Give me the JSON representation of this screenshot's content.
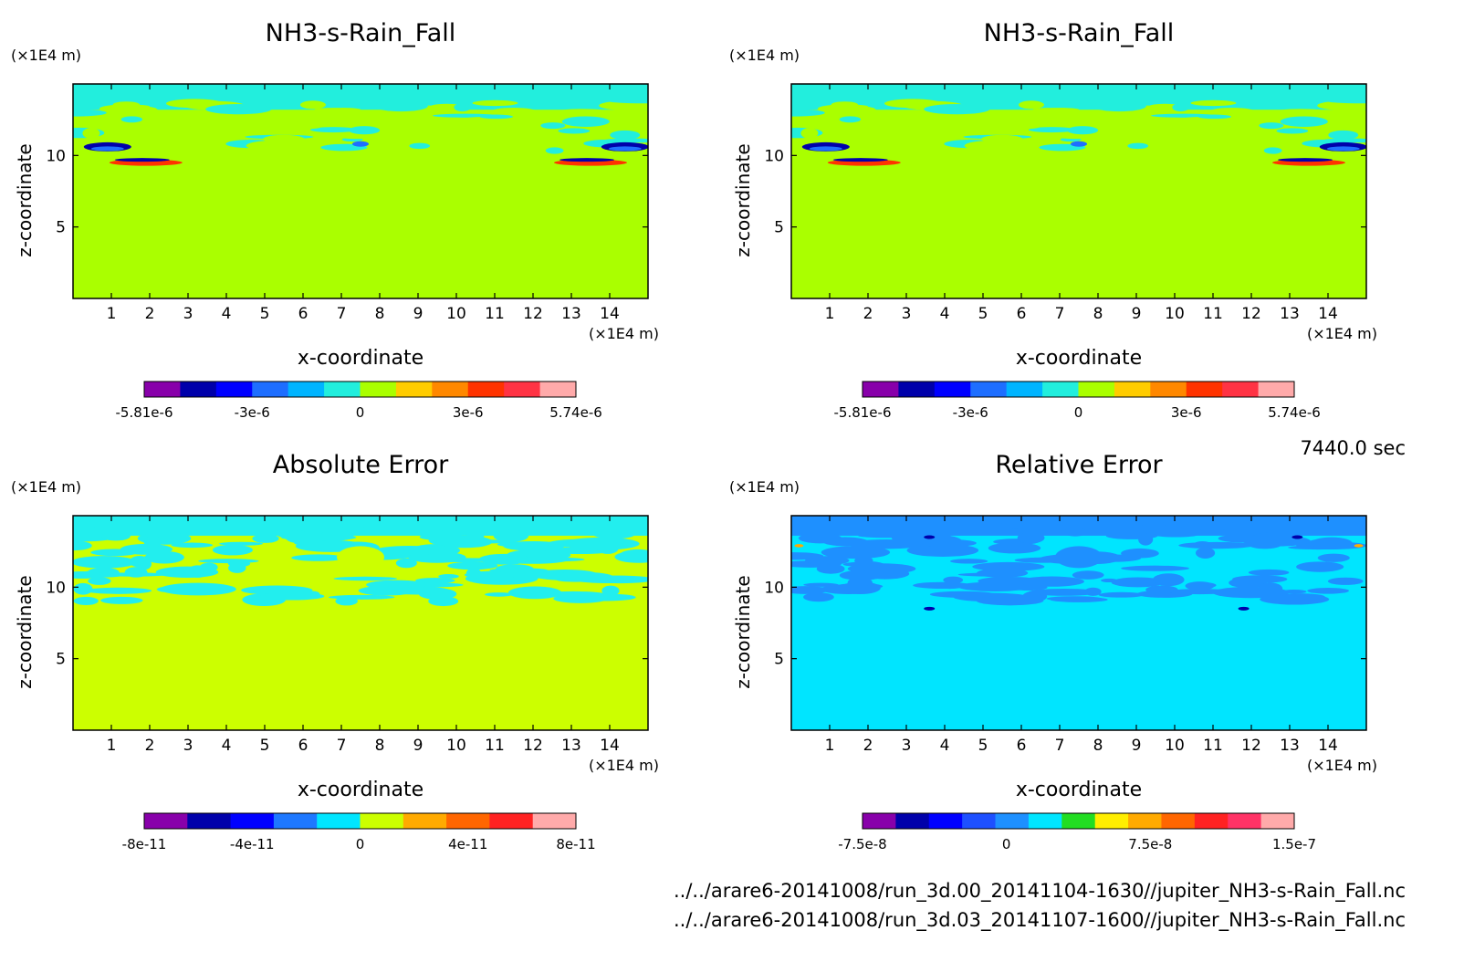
{
  "time_label": "7440.0 sec",
  "file_paths": [
    "../../arare6-20141008/run_3d.00_20141104-1630//jupiter_NH3-s-Rain_Fall.nc",
    "../../arare6-20141008/run_3d.03_20141107-1600//jupiter_NH3-s-Rain_Fall.nc"
  ],
  "colors": {
    "background_top": "#aaff00",
    "background_abs": "#ccff00",
    "background_rel": "#00e5ff",
    "band_top": "#22eedd",
    "band_abs": "#22eeee",
    "band_rel": "#1e90ff"
  },
  "chart_data": [
    {
      "type": "heatmap",
      "title": "NH3-s-Rain_Fall",
      "xlabel": "x-coordinate",
      "ylabel": "z-coordinate",
      "x_unit": "(×1E4 m)",
      "y_unit": "(×1E4 m)",
      "xlim": [
        0,
        15
      ],
      "ylim": [
        0,
        15
      ],
      "x_ticks": [
        "1",
        "2",
        "3",
        "4",
        "5",
        "6",
        "7",
        "8",
        "9",
        "10",
        "11",
        "12",
        "13",
        "14"
      ],
      "y_ticks": [
        "5",
        "10"
      ],
      "colorbar": {
        "colors": [
          "#8800aa",
          "#0000aa",
          "#0000ff",
          "#1e6eff",
          "#00b4ff",
          "#22eedd",
          "#aaff00",
          "#ffcc00",
          "#ff8800",
          "#ff3300",
          "#ff3344",
          "#ffaaaa"
        ],
        "tick_labels": [
          "-5.81e-6",
          "-3e-6",
          "0",
          "3e-6",
          "5.74e-6"
        ]
      }
    },
    {
      "type": "heatmap",
      "title": "NH3-s-Rain_Fall",
      "xlabel": "x-coordinate",
      "ylabel": "z-coordinate",
      "x_unit": "(×1E4 m)",
      "y_unit": "(×1E4 m)",
      "xlim": [
        0,
        15
      ],
      "ylim": [
        0,
        15
      ],
      "x_ticks": [
        "1",
        "2",
        "3",
        "4",
        "5",
        "6",
        "7",
        "8",
        "9",
        "10",
        "11",
        "12",
        "13",
        "14"
      ],
      "y_ticks": [
        "5",
        "10"
      ],
      "colorbar": {
        "colors": [
          "#8800aa",
          "#0000aa",
          "#0000ff",
          "#1e6eff",
          "#00b4ff",
          "#22eedd",
          "#aaff00",
          "#ffcc00",
          "#ff8800",
          "#ff3300",
          "#ff3344",
          "#ffaaaa"
        ],
        "tick_labels": [
          "-5.81e-6",
          "-3e-6",
          "0",
          "3e-6",
          "5.74e-6"
        ]
      }
    },
    {
      "type": "heatmap",
      "title": "Absolute Error",
      "xlabel": "x-coordinate",
      "ylabel": "z-coordinate",
      "x_unit": "(×1E4 m)",
      "y_unit": "(×1E4 m)",
      "xlim": [
        0,
        15
      ],
      "ylim": [
        0,
        15
      ],
      "x_ticks": [
        "1",
        "2",
        "3",
        "4",
        "5",
        "6",
        "7",
        "8",
        "9",
        "10",
        "11",
        "12",
        "13",
        "14"
      ],
      "y_ticks": [
        "5",
        "10"
      ],
      "colorbar": {
        "colors": [
          "#8800aa",
          "#0000aa",
          "#0000ff",
          "#1e78ff",
          "#00e5ff",
          "#ccff00",
          "#ffaa00",
          "#ff6600",
          "#ff2222",
          "#ffaaaa"
        ],
        "tick_labels": [
          "-8e-11",
          "-4e-11",
          "0",
          "4e-11",
          "8e-11"
        ]
      }
    },
    {
      "type": "heatmap",
      "title": "Relative Error",
      "xlabel": "x-coordinate",
      "ylabel": "z-coordinate",
      "x_unit": "(×1E4 m)",
      "y_unit": "(×1E4 m)",
      "xlim": [
        0,
        15
      ],
      "ylim": [
        0,
        15
      ],
      "x_ticks": [
        "1",
        "2",
        "3",
        "4",
        "5",
        "6",
        "7",
        "8",
        "9",
        "10",
        "11",
        "12",
        "13",
        "14"
      ],
      "y_ticks": [
        "5",
        "10"
      ],
      "colorbar": {
        "colors": [
          "#8800aa",
          "#0000aa",
          "#0000ff",
          "#1e50ff",
          "#1e90ff",
          "#00e5ff",
          "#22dd22",
          "#ffee00",
          "#ffaa00",
          "#ff6600",
          "#ff2222",
          "#ff3366",
          "#ffaaaa"
        ],
        "tick_labels": [
          "-7.5e-8",
          "0",
          "7.5e-8",
          "1.5e-7"
        ]
      }
    }
  ]
}
